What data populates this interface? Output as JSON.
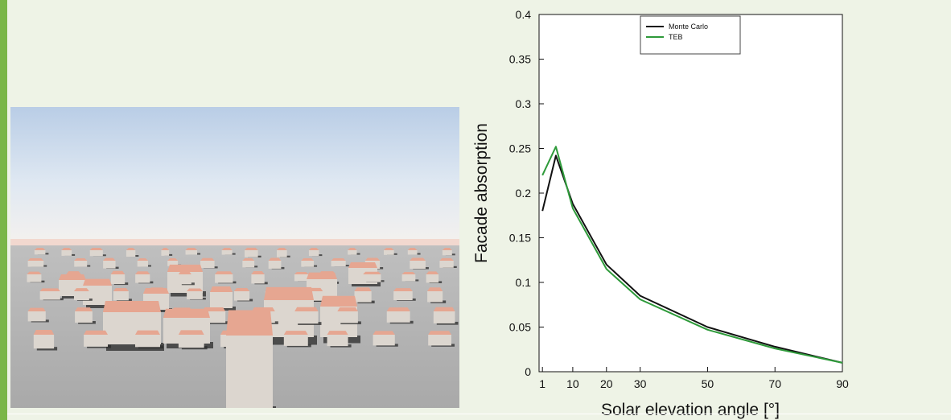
{
  "page": {
    "accent_color": "#7ab648",
    "background": "#eef3e6"
  },
  "scene": {
    "description_icon": "urban-buildings-render-illustration"
  },
  "chart_data": {
    "type": "line",
    "title": "",
    "xlabel": "Solar elevation angle [°]",
    "ylabel": "Facade absorption",
    "xlim": [
      0,
      90
    ],
    "ylim": [
      0,
      0.4
    ],
    "xticks": [
      1,
      10,
      20,
      30,
      50,
      70,
      90
    ],
    "yticks": [
      0,
      0.05,
      0.1,
      0.15,
      0.2,
      0.25,
      0.3,
      0.35,
      0.4
    ],
    "ytick_labels": [
      "0",
      "0.05",
      "0.1",
      "0.15",
      "0.2",
      "0.25",
      "0.3",
      "0.35",
      "0.4"
    ],
    "grid": false,
    "legend_position": "top-center",
    "series": [
      {
        "name": "Monte Carlo",
        "color": "#111111",
        "x": [
          1,
          5,
          10,
          20,
          30,
          50,
          70,
          90
        ],
        "y": [
          0.18,
          0.242,
          0.188,
          0.12,
          0.085,
          0.05,
          0.028,
          0.01
        ]
      },
      {
        "name": "TEB",
        "color": "#2e9a3a",
        "x": [
          1,
          5,
          10,
          20,
          30,
          50,
          70,
          90
        ],
        "y": [
          0.22,
          0.252,
          0.183,
          0.115,
          0.081,
          0.047,
          0.026,
          0.01
        ]
      }
    ]
  }
}
